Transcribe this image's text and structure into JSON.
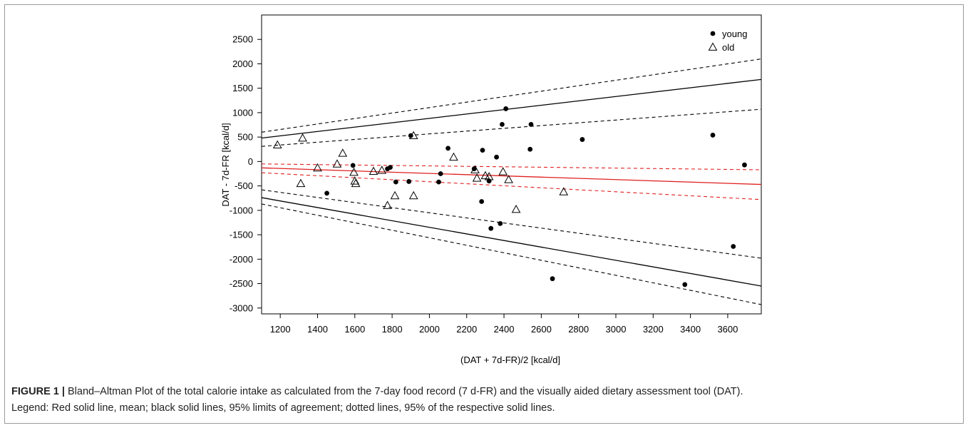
{
  "caption": {
    "label": "FIGURE 1 |",
    "line1": " Bland–Altman Plot of the total calorie intake as calculated from the 7-day food record (7 d-FR) and the visually aided dietary assessment tool (DAT).",
    "line2": "Legend: Red solid line, mean; black solid lines, 95% limits of agreement; dotted lines, 95% of the respective solid lines."
  },
  "colors": {
    "mean": "#e02020",
    "limits": "#000000",
    "points": "#000000"
  },
  "chart_data": {
    "type": "scatter",
    "title": "",
    "xlabel": "(DAT + 7d-FR)/2 [kcal/d]",
    "ylabel": "DAT - 7d-FR [kcal/d]",
    "xlim": [
      1100,
      3780
    ],
    "ylim": [
      -3120,
      3000
    ],
    "x_ticks": [
      1200,
      1400,
      1600,
      1800,
      2000,
      2200,
      2400,
      2600,
      2800,
      3000,
      3200,
      3400,
      3600
    ],
    "y_ticks": [
      -3000,
      -2500,
      -2000,
      -1500,
      -1000,
      -500,
      0,
      500,
      1000,
      1500,
      2000,
      2500
    ],
    "grid": false,
    "legend_position": "top-right",
    "series": [
      {
        "name": "young",
        "marker": "filled-circle",
        "points": [
          [
            1450,
            -650
          ],
          [
            1590,
            -80
          ],
          [
            1775,
            -150
          ],
          [
            1790,
            -120
          ],
          [
            1820,
            -420
          ],
          [
            1890,
            -410
          ],
          [
            1900,
            530
          ],
          [
            2050,
            -420
          ],
          [
            2060,
            -250
          ],
          [
            2100,
            270
          ],
          [
            2240,
            -150
          ],
          [
            2280,
            -820
          ],
          [
            2285,
            230
          ],
          [
            2320,
            -400
          ],
          [
            2330,
            -1370
          ],
          [
            2360,
            90
          ],
          [
            2380,
            -1270
          ],
          [
            2390,
            760
          ],
          [
            2410,
            1080
          ],
          [
            2540,
            250
          ],
          [
            2545,
            760
          ],
          [
            2660,
            -2400
          ],
          [
            2820,
            450
          ],
          [
            3370,
            -2520
          ],
          [
            3520,
            540
          ],
          [
            3630,
            -1740
          ],
          [
            3690,
            -70
          ]
        ]
      },
      {
        "name": "old",
        "marker": "open-triangle",
        "points": [
          [
            1185,
            340
          ],
          [
            1310,
            -450
          ],
          [
            1320,
            480
          ],
          [
            1400,
            -130
          ],
          [
            1505,
            -50
          ],
          [
            1535,
            170
          ],
          [
            1595,
            -220
          ],
          [
            1600,
            -400
          ],
          [
            1605,
            -450
          ],
          [
            1700,
            -200
          ],
          [
            1745,
            -180
          ],
          [
            1775,
            -900
          ],
          [
            1815,
            -700
          ],
          [
            1915,
            530
          ],
          [
            1915,
            -700
          ],
          [
            2130,
            90
          ],
          [
            2245,
            -170
          ],
          [
            2255,
            -340
          ],
          [
            2300,
            -290
          ],
          [
            2320,
            -310
          ],
          [
            2395,
            -210
          ],
          [
            2425,
            -370
          ],
          [
            2465,
            -980
          ],
          [
            2720,
            -620
          ]
        ]
      }
    ],
    "lines": [
      {
        "name": "mean",
        "style": "solid",
        "color": "red",
        "from": [
          1100,
          -130
        ],
        "to": [
          3780,
          -470
        ]
      },
      {
        "name": "mean 95% upper",
        "style": "dashed",
        "color": "red",
        "from": [
          1100,
          -50
        ],
        "to": [
          3780,
          -170
        ]
      },
      {
        "name": "mean 95% lower",
        "style": "dashed",
        "color": "red",
        "from": [
          1100,
          -230
        ],
        "to": [
          3780,
          -780
        ]
      },
      {
        "name": "upper limit of agreement",
        "style": "solid",
        "color": "black",
        "from": [
          1100,
          480
        ],
        "to": [
          3780,
          1680
        ]
      },
      {
        "name": "upper limit 95% upper",
        "style": "dashed",
        "color": "black",
        "from": [
          1100,
          600
        ],
        "to": [
          3780,
          2100
        ]
      },
      {
        "name": "upper limit 95% lower",
        "style": "dashed",
        "color": "black",
        "from": [
          1100,
          310
        ],
        "to": [
          3780,
          1070
        ]
      },
      {
        "name": "lower limit of agreement",
        "style": "solid",
        "color": "black",
        "from": [
          1100,
          -740
        ],
        "to": [
          3780,
          -2550
        ]
      },
      {
        "name": "lower limit 95% upper",
        "style": "dashed",
        "color": "black",
        "from": [
          1100,
          -580
        ],
        "to": [
          3780,
          -1980
        ]
      },
      {
        "name": "lower limit 95% lower",
        "style": "dashed",
        "color": "black",
        "from": [
          1100,
          -870
        ],
        "to": [
          3780,
          -2930
        ]
      }
    ]
  }
}
